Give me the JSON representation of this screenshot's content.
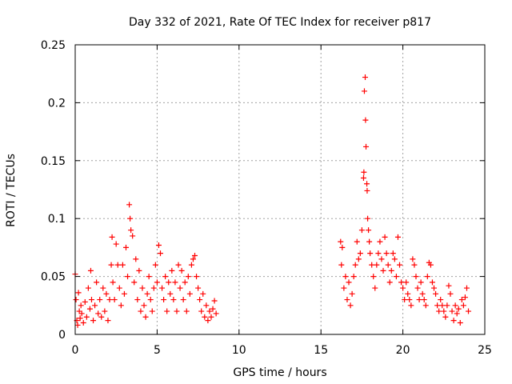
{
  "chart_data": {
    "type": "scatter",
    "title": "Day 332 of 2021, Rate Of TEC Index for receiver p817",
    "xlabel": "GPS time / hours",
    "ylabel": "ROTI / TECUs",
    "xlim": [
      0,
      25
    ],
    "ylim": [
      0,
      0.25
    ],
    "xticks": [
      "0",
      "5",
      "10",
      "15",
      "20",
      "25"
    ],
    "yticks": [
      "0",
      "0.05",
      "0.1",
      "0.15",
      "0.2",
      "0.25"
    ],
    "grid": true,
    "marker": "+",
    "color": "#ff0000",
    "series": [
      {
        "name": "",
        "points": [
          [
            0.0,
            0.052
          ],
          [
            0.05,
            0.03
          ],
          [
            0.1,
            0.012
          ],
          [
            0.15,
            0.008
          ],
          [
            0.2,
            0.036
          ],
          [
            0.25,
            0.02
          ],
          [
            0.3,
            0.014
          ],
          [
            0.35,
            0.025
          ],
          [
            0.4,
            0.018
          ],
          [
            0.5,
            0.01
          ],
          [
            0.6,
            0.028
          ],
          [
            0.7,
            0.015
          ],
          [
            0.8,
            0.04
          ],
          [
            0.9,
            0.022
          ],
          [
            0.95,
            0.055
          ],
          [
            1.0,
            0.03
          ],
          [
            1.1,
            0.012
          ],
          [
            1.2,
            0.025
          ],
          [
            1.3,
            0.045
          ],
          [
            1.4,
            0.018
          ],
          [
            1.5,
            0.03
          ],
          [
            1.6,
            0.015
          ],
          [
            1.7,
            0.04
          ],
          [
            1.8,
            0.02
          ],
          [
            1.9,
            0.035
          ],
          [
            2.0,
            0.012
          ],
          [
            2.1,
            0.03
          ],
          [
            2.2,
            0.06
          ],
          [
            2.25,
            0.084
          ],
          [
            2.3,
            0.045
          ],
          [
            2.4,
            0.03
          ],
          [
            2.5,
            0.078
          ],
          [
            2.6,
            0.06
          ],
          [
            2.7,
            0.04
          ],
          [
            2.8,
            0.025
          ],
          [
            2.9,
            0.06
          ],
          [
            3.0,
            0.035
          ],
          [
            3.1,
            0.075
          ],
          [
            3.2,
            0.05
          ],
          [
            3.3,
            0.112
          ],
          [
            3.35,
            0.1
          ],
          [
            3.4,
            0.09
          ],
          [
            3.5,
            0.085
          ],
          [
            3.6,
            0.045
          ],
          [
            3.7,
            0.065
          ],
          [
            3.8,
            0.03
          ],
          [
            3.9,
            0.055
          ],
          [
            4.0,
            0.02
          ],
          [
            4.1,
            0.04
          ],
          [
            4.2,
            0.025
          ],
          [
            4.3,
            0.015
          ],
          [
            4.4,
            0.035
          ],
          [
            4.5,
            0.05
          ],
          [
            4.6,
            0.03
          ],
          [
            4.7,
            0.02
          ],
          [
            4.8,
            0.04
          ],
          [
            4.9,
            0.06
          ],
          [
            5.0,
            0.045
          ],
          [
            5.1,
            0.077
          ],
          [
            5.2,
            0.07
          ],
          [
            5.3,
            0.04
          ],
          [
            5.4,
            0.03
          ],
          [
            5.5,
            0.05
          ],
          [
            5.6,
            0.02
          ],
          [
            5.7,
            0.045
          ],
          [
            5.8,
            0.035
          ],
          [
            5.9,
            0.055
          ],
          [
            6.0,
            0.03
          ],
          [
            6.1,
            0.045
          ],
          [
            6.2,
            0.02
          ],
          [
            6.3,
            0.06
          ],
          [
            6.4,
            0.04
          ],
          [
            6.5,
            0.055
          ],
          [
            6.6,
            0.03
          ],
          [
            6.7,
            0.045
          ],
          [
            6.8,
            0.02
          ],
          [
            6.9,
            0.05
          ],
          [
            7.0,
            0.035
          ],
          [
            7.1,
            0.06
          ],
          [
            7.2,
            0.065
          ],
          [
            7.3,
            0.068
          ],
          [
            7.4,
            0.05
          ],
          [
            7.5,
            0.04
          ],
          [
            7.6,
            0.03
          ],
          [
            7.7,
            0.02
          ],
          [
            7.8,
            0.035
          ],
          [
            7.9,
            0.015
          ],
          [
            8.0,
            0.025
          ],
          [
            8.1,
            0.012
          ],
          [
            8.2,
            0.02
          ],
          [
            8.3,
            0.015
          ],
          [
            8.4,
            0.022
          ],
          [
            8.5,
            0.029
          ],
          [
            8.6,
            0.018
          ],
          [
            16.2,
            0.08
          ],
          [
            16.25,
            0.06
          ],
          [
            16.3,
            0.075
          ],
          [
            16.4,
            0.04
          ],
          [
            16.5,
            0.05
          ],
          [
            16.6,
            0.03
          ],
          [
            16.7,
            0.045
          ],
          [
            16.8,
            0.025
          ],
          [
            16.9,
            0.035
          ],
          [
            17.0,
            0.05
          ],
          [
            17.1,
            0.06
          ],
          [
            17.2,
            0.08
          ],
          [
            17.3,
            0.065
          ],
          [
            17.4,
            0.07
          ],
          [
            17.5,
            0.09
          ],
          [
            17.6,
            0.135
          ],
          [
            17.62,
            0.14
          ],
          [
            17.65,
            0.21
          ],
          [
            17.7,
            0.222
          ],
          [
            17.72,
            0.185
          ],
          [
            17.75,
            0.162
          ],
          [
            17.8,
            0.13
          ],
          [
            17.82,
            0.124
          ],
          [
            17.85,
            0.1
          ],
          [
            17.9,
            0.09
          ],
          [
            17.95,
            0.08
          ],
          [
            18.0,
            0.07
          ],
          [
            18.1,
            0.06
          ],
          [
            18.2,
            0.05
          ],
          [
            18.3,
            0.04
          ],
          [
            18.4,
            0.06
          ],
          [
            18.5,
            0.07
          ],
          [
            18.6,
            0.08
          ],
          [
            18.7,
            0.065
          ],
          [
            18.8,
            0.055
          ],
          [
            18.9,
            0.084
          ],
          [
            19.0,
            0.07
          ],
          [
            19.1,
            0.06
          ],
          [
            19.2,
            0.045
          ],
          [
            19.3,
            0.055
          ],
          [
            19.4,
            0.07
          ],
          [
            19.5,
            0.065
          ],
          [
            19.6,
            0.05
          ],
          [
            19.7,
            0.084
          ],
          [
            19.8,
            0.06
          ],
          [
            19.9,
            0.045
          ],
          [
            20.0,
            0.04
          ],
          [
            20.1,
            0.03
          ],
          [
            20.2,
            0.045
          ],
          [
            20.3,
            0.035
          ],
          [
            20.4,
            0.03
          ],
          [
            20.5,
            0.025
          ],
          [
            20.6,
            0.065
          ],
          [
            20.7,
            0.06
          ],
          [
            20.8,
            0.05
          ],
          [
            20.9,
            0.04
          ],
          [
            21.0,
            0.03
          ],
          [
            21.1,
            0.045
          ],
          [
            21.2,
            0.035
          ],
          [
            21.3,
            0.03
          ],
          [
            21.4,
            0.025
          ],
          [
            21.5,
            0.05
          ],
          [
            21.6,
            0.062
          ],
          [
            21.7,
            0.06
          ],
          [
            21.8,
            0.045
          ],
          [
            21.9,
            0.04
          ],
          [
            22.0,
            0.035
          ],
          [
            22.1,
            0.025
          ],
          [
            22.2,
            0.02
          ],
          [
            22.3,
            0.03
          ],
          [
            22.4,
            0.025
          ],
          [
            22.5,
            0.02
          ],
          [
            22.6,
            0.015
          ],
          [
            22.7,
            0.025
          ],
          [
            22.8,
            0.042
          ],
          [
            22.9,
            0.035
          ],
          [
            23.0,
            0.02
          ],
          [
            23.1,
            0.012
          ],
          [
            23.2,
            0.025
          ],
          [
            23.3,
            0.018
          ],
          [
            23.4,
            0.022
          ],
          [
            23.5,
            0.01
          ],
          [
            23.6,
            0.03
          ],
          [
            23.7,
            0.025
          ],
          [
            23.8,
            0.032
          ],
          [
            23.9,
            0.04
          ],
          [
            24.0,
            0.02
          ]
        ]
      }
    ]
  }
}
